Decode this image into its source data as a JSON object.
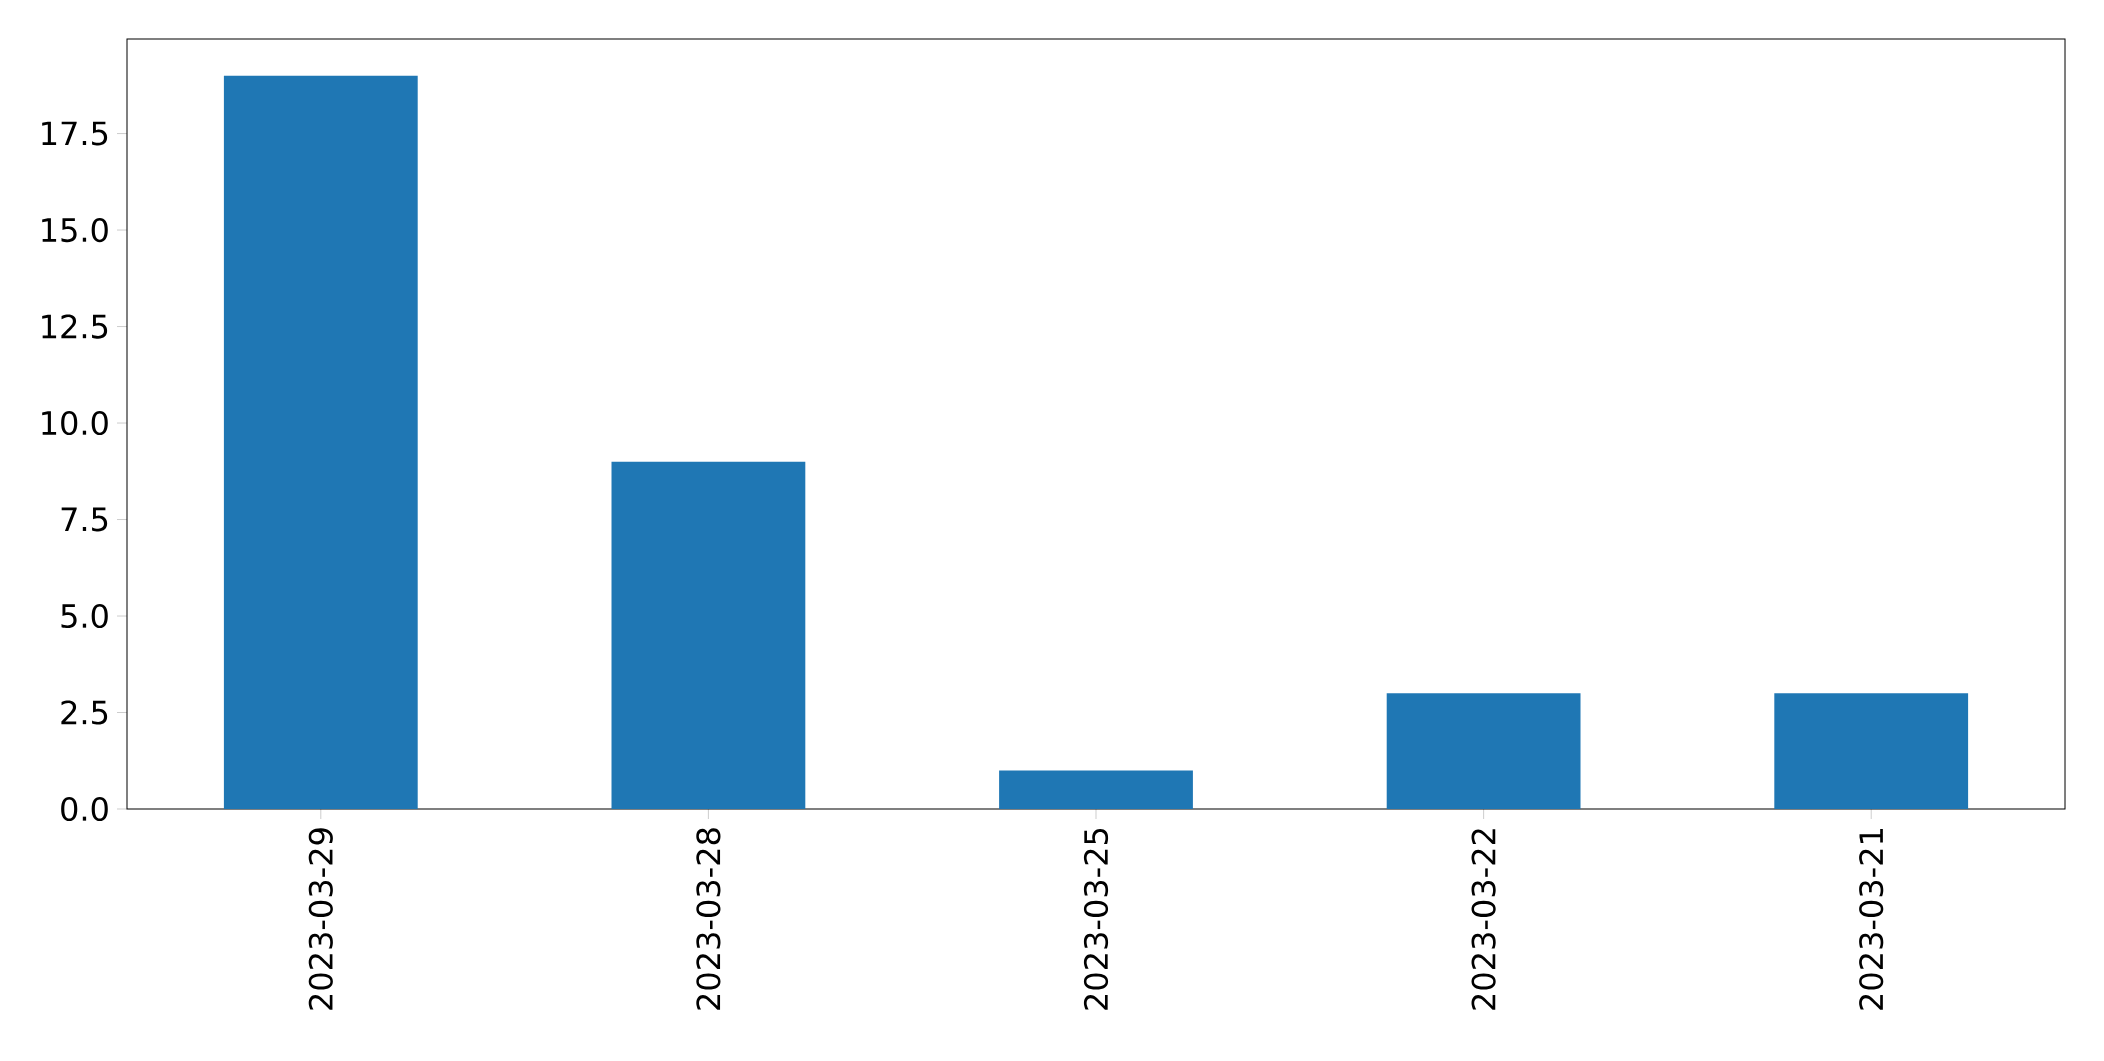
{
  "chart_data": {
    "type": "bar",
    "categories": [
      "2023-03-29",
      "2023-03-28",
      "2023-03-25",
      "2023-03-22",
      "2023-03-21"
    ],
    "values": [
      19,
      9,
      1,
      3,
      3
    ],
    "color": "#1f77b4",
    "ylim": [
      0,
      19.95
    ],
    "yticks": [
      {
        "value": 0,
        "label": "0.0"
      },
      {
        "value": 2.5,
        "label": "2.5"
      },
      {
        "value": 5,
        "label": "5.0"
      },
      {
        "value": 7.5,
        "label": "7.5"
      },
      {
        "value": 10,
        "label": "10.0"
      },
      {
        "value": 12.5,
        "label": "12.5"
      },
      {
        "value": 15,
        "label": "15.0"
      },
      {
        "value": 17.5,
        "label": "17.5"
      }
    ]
  }
}
